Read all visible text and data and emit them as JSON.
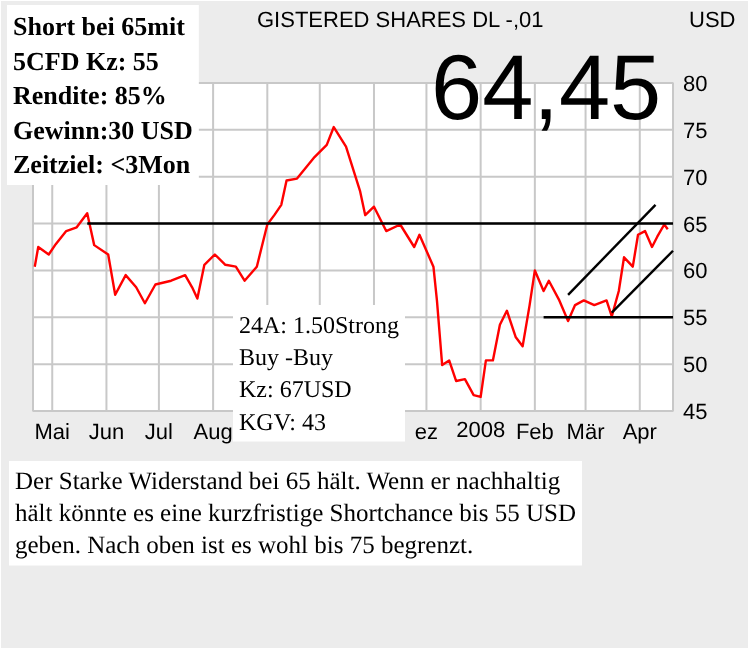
{
  "chart_data": {
    "type": "line",
    "title": "GISTERED SHARES DL -,01",
    "ylabel": "USD",
    "xlim": [
      "2007-04-20",
      "2008-04-20"
    ],
    "xticks": [
      {
        "value": "2007-05-01",
        "label": "Mai"
      },
      {
        "value": "2007-06-01",
        "label": "Jun"
      },
      {
        "value": "2007-07-01",
        "label": "Jul"
      },
      {
        "value": "2007-08-01",
        "label": "Aug"
      },
      {
        "value": "2007-09-01",
        "label": null
      },
      {
        "value": "2007-10-01",
        "label": null
      },
      {
        "value": "2007-11-01",
        "label": null
      },
      {
        "value": "2007-12-01",
        "label": "ez"
      },
      {
        "value": "2008-01-01",
        "label": "2008"
      },
      {
        "value": "2008-02-01",
        "label": "Feb"
      },
      {
        "value": "2008-03-01",
        "label": "Mär"
      },
      {
        "value": "2008-04-01",
        "label": "Apr"
      }
    ],
    "ylim": [
      45,
      80
    ],
    "yticks": [
      45,
      50,
      55,
      60,
      65,
      70,
      75,
      80
    ],
    "grid": true,
    "marker": "none",
    "line_style": "solid",
    "series": [
      {
        "color": "#ff0000",
        "x": [
          "2007-04-21",
          "2007-04-23",
          "2007-04-29",
          "2007-05-03",
          "2007-05-09",
          "2007-05-15",
          "2007-05-21",
          "2007-05-25",
          "2007-06-02",
          "2007-06-06",
          "2007-06-12",
          "2007-06-18",
          "2007-06-23",
          "2007-06-29",
          "2007-07-08",
          "2007-07-16",
          "2007-07-20",
          "2007-07-23",
          "2007-07-27",
          "2007-08-02",
          "2007-08-08",
          "2007-08-14",
          "2007-08-19",
          "2007-08-26",
          "2007-09-01",
          "2007-09-05",
          "2007-09-09",
          "2007-09-12",
          "2007-09-18",
          "2007-09-28",
          "2007-10-05",
          "2007-10-09",
          "2007-10-16",
          "2007-10-24",
          "2007-10-27",
          "2007-11-01",
          "2007-11-08",
          "2007-11-16",
          "2007-11-24",
          "2007-11-27",
          "2007-12-05",
          "2007-12-07",
          "2007-12-10",
          "2007-12-14",
          "2007-12-18",
          "2007-12-23",
          "2007-12-28",
          "2008-01-01",
          "2008-01-04",
          "2008-01-08",
          "2008-01-12",
          "2008-01-16",
          "2008-01-21",
          "2008-01-25",
          "2008-01-29",
          "2008-02-01",
          "2008-02-06",
          "2008-02-09",
          "2008-02-15",
          "2008-02-20",
          "2008-02-24",
          "2008-02-29",
          "2008-03-06",
          "2008-03-13",
          "2008-03-16",
          "2008-03-20",
          "2008-03-23",
          "2008-03-28",
          "2008-03-31",
          "2008-04-04",
          "2008-04-08",
          "2008-04-11",
          "2008-04-15",
          "2008-04-17"
        ],
        "values": [
          60.4,
          62.5,
          61.7,
          62.8,
          64.2,
          64.6,
          66.1,
          62.7,
          61.7,
          57.4,
          59.5,
          58.2,
          56.5,
          58.5,
          58.9,
          59.5,
          58.2,
          57.0,
          60.6,
          61.7,
          60.6,
          60.4,
          58.9,
          60.4,
          64.9,
          65.9,
          67.0,
          69.6,
          69.8,
          72.1,
          73.4,
          75.3,
          73.2,
          68.5,
          65.9,
          66.8,
          64.2,
          64.9,
          62.5,
          63.8,
          60.4,
          56.8,
          49.9,
          50.4,
          48.2,
          48.4,
          46.7,
          46.5,
          50.4,
          50.4,
          54.2,
          55.7,
          52.9,
          51.9,
          56.3,
          60.0,
          57.8,
          58.9,
          56.8,
          54.6,
          56.3,
          56.8,
          56.3,
          56.8,
          55.1,
          57.8,
          61.4,
          60.4,
          63.8,
          64.2,
          62.5,
          63.6,
          64.9,
          64.4
        ]
      },
      {
        "color": "#000000",
        "x": [
          "2007-05-21",
          "2008-04-20"
        ],
        "values": [
          65,
          65
        ]
      },
      {
        "color": "#000000",
        "x": [
          "2008-02-06",
          "2008-04-20"
        ],
        "values": [
          55,
          55
        ]
      },
      {
        "color": "#000000",
        "x": [
          "2008-02-20",
          "2008-04-10"
        ],
        "values": [
          57.4,
          67.0
        ]
      },
      {
        "color": "#000000",
        "x": [
          "2008-03-16",
          "2008-04-20"
        ],
        "values": [
          55.5,
          62.1
        ]
      }
    ],
    "annotations": [
      "Short bei 65mit\n5CFD Kz: 55\nRendite: 85%\nGewinn:30 USD\nZeitziel: <3Mon",
      "64,45",
      "24A: 1.50Strong\nBuy -Buy\nKz: 67USD\nKGV: 43",
      "Der Starke Widerstand bei 65 hält. Wenn er nachhaltig\nhält könnte es eine kurzfristige Shortchance bis 55 USD\ngeben. Nach oben ist es wohl bis 75 begrenzt."
    ]
  }
}
